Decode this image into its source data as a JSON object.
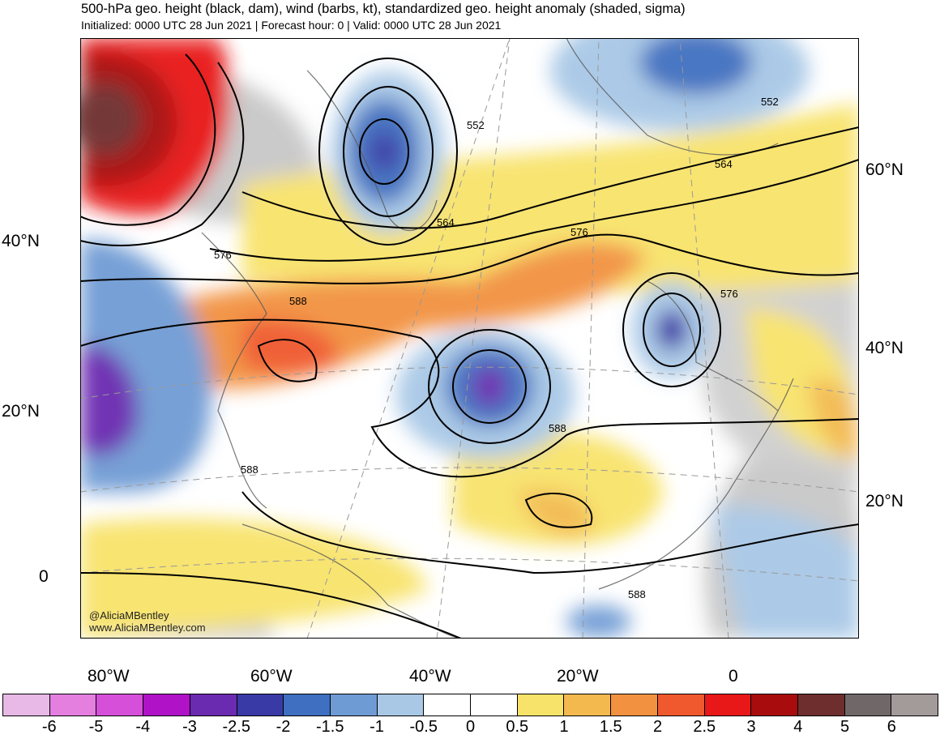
{
  "header": {
    "title": "500-hPa geo. height (black, dam), wind (barbs, kt), standardized geo. height anomaly (shaded, sigma)",
    "subtitle": "Initialized: 0000 UTC 28 Jun 2021 | Forecast hour: 0 | Valid: 0000 UTC 28 Jun 2021"
  },
  "map": {
    "left_lat_labels": [
      "40°N",
      "20°N",
      "0"
    ],
    "right_lat_labels": [
      "60°N",
      "40°N",
      "20°N"
    ],
    "lon_labels": [
      "80°W",
      "60°W",
      "40°W",
      "20°W",
      "0"
    ],
    "contour_labels": [
      "552",
      "552",
      "564",
      "564",
      "576",
      "576",
      "576",
      "588",
      "588",
      "588",
      "588"
    ],
    "credit": [
      "@AliciaMBentley",
      "www.AliciaMBentley.com"
    ]
  },
  "colorbar": {
    "labels": [
      "-6",
      "-5",
      "-4",
      "-3",
      "-2.5",
      "-2",
      "-1.5",
      "-1",
      "-0.5",
      "0",
      "0.5",
      "1",
      "1.5",
      "2",
      "2.5",
      "3",
      "4",
      "5",
      "6"
    ],
    "colors": [
      "#e8b8e6",
      "#e47fe0",
      "#d64fd8",
      "#b012c8",
      "#6b2bb0",
      "#3a3aa6",
      "#3f6fc0",
      "#6f9bd4",
      "#a8c8e6",
      "#ffffff",
      "#ffffff",
      "#f8e36a",
      "#f3b94f",
      "#f2913f",
      "#f0582e",
      "#e81818",
      "#a80c0c",
      "#6e2e2e",
      "#706868",
      "#a39a9a"
    ]
  }
}
